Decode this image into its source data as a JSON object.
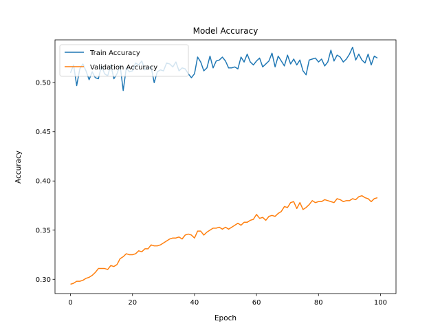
{
  "chart_data": {
    "type": "line",
    "title": "Model Accuracy",
    "xlabel": "Epoch",
    "ylabel": "Accuracy",
    "xlim": [
      -5,
      105
    ],
    "ylim": [
      0.2855,
      0.5435
    ],
    "x_ticks": [
      0,
      20,
      40,
      60,
      80,
      100
    ],
    "y_ticks": [
      0.3,
      0.35,
      0.4,
      0.45,
      0.5
    ],
    "x_tick_labels": [
      "0",
      "20",
      "40",
      "60",
      "80",
      "100"
    ],
    "y_tick_labels": [
      "0.30",
      "0.35",
      "0.40",
      "0.45",
      "0.50"
    ],
    "grid": false,
    "legend_position": "upper-left",
    "series": [
      {
        "name": "Train Accuracy",
        "color": "#1f77b4",
        "values": [
          0.51,
          0.518,
          0.497,
          0.514,
          0.519,
          0.512,
          0.503,
          0.511,
          0.505,
          0.504,
          0.517,
          0.509,
          0.507,
          0.518,
          0.504,
          0.509,
          0.518,
          0.492,
          0.515,
          0.511,
          0.512,
          0.52,
          0.518,
          0.522,
          0.513,
          0.515,
          0.516,
          0.5,
          0.511,
          0.513,
          0.512,
          0.52,
          0.519,
          0.516,
          0.521,
          0.512,
          0.515,
          0.514,
          0.509,
          0.505,
          0.509,
          0.526,
          0.521,
          0.512,
          0.515,
          0.527,
          0.515,
          0.522,
          0.523,
          0.526,
          0.522,
          0.515,
          0.515,
          0.516,
          0.514,
          0.526,
          0.521,
          0.529,
          0.521,
          0.518,
          0.522,
          0.525,
          0.516,
          0.519,
          0.522,
          0.53,
          0.516,
          0.527,
          0.522,
          0.517,
          0.528,
          0.519,
          0.524,
          0.518,
          0.523,
          0.512,
          0.508,
          0.523,
          0.524,
          0.525,
          0.521,
          0.524,
          0.517,
          0.521,
          0.533,
          0.522,
          0.528,
          0.526,
          0.521,
          0.524,
          0.529,
          0.536,
          0.523,
          0.529,
          0.523,
          0.52,
          0.529,
          0.518,
          0.527,
          0.525
        ]
      },
      {
        "name": "Validation Accuracy",
        "color": "#ff7f0e",
        "values": [
          0.295,
          0.296,
          0.298,
          0.298,
          0.299,
          0.301,
          0.302,
          0.304,
          0.307,
          0.311,
          0.311,
          0.311,
          0.31,
          0.314,
          0.313,
          0.315,
          0.321,
          0.323,
          0.326,
          0.325,
          0.325,
          0.326,
          0.329,
          0.328,
          0.331,
          0.331,
          0.335,
          0.334,
          0.334,
          0.335,
          0.337,
          0.339,
          0.341,
          0.342,
          0.342,
          0.343,
          0.341,
          0.345,
          0.346,
          0.345,
          0.342,
          0.349,
          0.349,
          0.345,
          0.348,
          0.35,
          0.352,
          0.352,
          0.353,
          0.351,
          0.353,
          0.351,
          0.353,
          0.355,
          0.357,
          0.355,
          0.358,
          0.358,
          0.36,
          0.361,
          0.366,
          0.362,
          0.363,
          0.36,
          0.364,
          0.365,
          0.364,
          0.367,
          0.369,
          0.374,
          0.373,
          0.378,
          0.379,
          0.372,
          0.378,
          0.371,
          0.373,
          0.376,
          0.38,
          0.378,
          0.379,
          0.379,
          0.381,
          0.38,
          0.379,
          0.378,
          0.382,
          0.381,
          0.379,
          0.38,
          0.38,
          0.382,
          0.381,
          0.384,
          0.385,
          0.383,
          0.382,
          0.379,
          0.382,
          0.383
        ]
      }
    ]
  }
}
